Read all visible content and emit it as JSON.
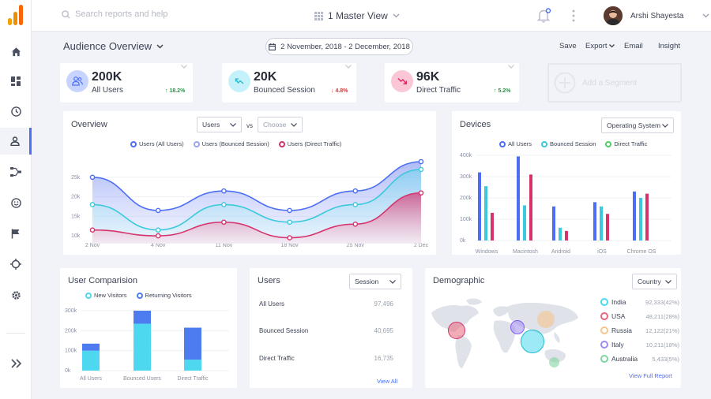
{
  "search": {
    "placeholder": "Search reports and help"
  },
  "view": {
    "label": "1 Master View"
  },
  "user": {
    "name": "Arshi Shayesta"
  },
  "page": {
    "title": "Audience Overview",
    "date_range": "2 November, 2018 - 2 December, 2018"
  },
  "actions": [
    "Save",
    "Export",
    "Email",
    "Insight"
  ],
  "kpis": [
    {
      "value": "200K",
      "label": "All Users",
      "change": "18.2%",
      "trend": "up",
      "color": "#4c6ef5"
    },
    {
      "value": "20K",
      "label": "Bounced Session",
      "change": "4.8%",
      "trend": "down",
      "color": "#22b8cf"
    },
    {
      "value": "96K",
      "label": "Direct Traffic",
      "change": "5.2%",
      "trend": "up",
      "color": "#e0245e"
    }
  ],
  "segment": {
    "label": "Add a Segment"
  },
  "overview": {
    "title": "Overview",
    "select1": "Users",
    "vs": "vs",
    "select2": "Choose",
    "chart_data": {
      "type": "area",
      "categories": [
        "2 Nov",
        "4 Nov",
        "11 Nov",
        "18 Nov",
        "25 Nov",
        "2 Dec"
      ],
      "yticks": [
        "25k",
        "20k",
        "15k",
        "10k"
      ],
      "series": [
        {
          "name": "Users (All Users)",
          "color": "#4c6ef5",
          "values": [
            25000,
            16500,
            21500,
            16500,
            21500,
            29000
          ]
        },
        {
          "name": "Users (Bounced Session)",
          "color": "#3bc9db",
          "values": [
            18000,
            11500,
            18000,
            13500,
            18000,
            27000
          ]
        },
        {
          "name": "Users (Direct Traffic)",
          "color": "#d6336c",
          "values": [
            11500,
            10000,
            13500,
            9500,
            13000,
            21000
          ]
        }
      ]
    }
  },
  "devices": {
    "title": "Devices",
    "select": "Operating System",
    "chart_data": {
      "type": "bar",
      "categories": [
        "Windows",
        "Macintosh",
        "Android",
        "iOS",
        "Chrome OS"
      ],
      "yticks": [
        "400k",
        "300k",
        "200k",
        "100k",
        "0k"
      ],
      "ylim": [
        0,
        400000
      ],
      "series": [
        {
          "name": "All Users",
          "color": "#4c6ef5",
          "values": [
            320000,
            395000,
            160000,
            180000,
            230000
          ]
        },
        {
          "name": "Bounced Session",
          "color": "#3bc9db",
          "values": [
            255000,
            165000,
            60000,
            160000,
            200000
          ]
        },
        {
          "name": "Direct Traffic",
          "color": "#d6336c",
          "values": [
            130000,
            310000,
            45000,
            125000,
            220000
          ]
        }
      ]
    }
  },
  "user_comparison": {
    "title": "User Comparision",
    "chart_data": {
      "type": "bar",
      "stacked": true,
      "categories": [
        "All Users",
        "Bounced Users",
        "Direct Traffic"
      ],
      "yticks": [
        "300k",
        "200k",
        "100k",
        "0k"
      ],
      "ylim": [
        0,
        300000
      ],
      "series": [
        {
          "name": "New Visitors",
          "color": "#4dd8f0",
          "values": [
            100000,
            235000,
            55000
          ]
        },
        {
          "name": "Returning Visitors",
          "color": "#4c7cf0",
          "values": [
            35000,
            65000,
            160000
          ]
        }
      ]
    }
  },
  "users_table": {
    "title": "Users",
    "select": "Session",
    "rows": [
      {
        "label": "All Users",
        "value": "97,496"
      },
      {
        "label": "Bounced Session",
        "value": "40,695"
      },
      {
        "label": "Direct Traffic",
        "value": "16,735"
      }
    ],
    "link": "View All"
  },
  "demographic": {
    "title": "Demographic",
    "select": "Country",
    "countries": [
      {
        "name": "India",
        "value": "92,333(42%)",
        "color": "#4dd8f0"
      },
      {
        "name": "USA",
        "value": "48,211(28%)",
        "color": "#e8677e"
      },
      {
        "name": "Russia",
        "value": "12,122(21%)",
        "color": "#f7c58c"
      },
      {
        "name": "Italy",
        "value": "10,211(18%)",
        "color": "#a08bf0"
      },
      {
        "name": "Australia",
        "value": "5,433(5%)",
        "color": "#7fd6a0"
      }
    ],
    "link": "View Full Report"
  }
}
